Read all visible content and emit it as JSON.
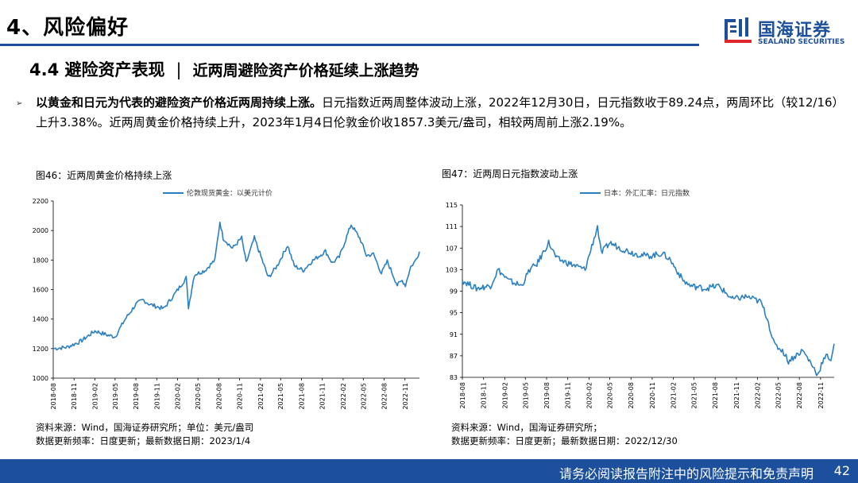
{
  "header": {
    "section_title": "4、风险偏好",
    "sub_title_a": "4.4 避险资产表现",
    "sub_title_sep": "|",
    "sub_title_b": "近两周避险资产价格延续上涨趋势",
    "logo_cn": "国海证券",
    "logo_en": "SEALAND SECURITIES",
    "brand_color": "#1c4f9c"
  },
  "body": {
    "bullet": "➢",
    "para_bold": "以黄金和日元为代表的避险资产价格近两周持续上涨。",
    "para_rest": "日元指数近两周整体波动上涨，2022年12月30日，日元指数收于89.24点，两周环比（较12/16）上升3.38%。近两周黄金价格持续上升，2023年1月4日伦敦金价收1857.3美元/盎司，相较两周前上涨2.19%。"
  },
  "fig46": {
    "title": "图46：近两周黄金价格持续上涨",
    "note1": "资料来源：Wind，国海证券研究所；单位：美元/盎司",
    "note2": "数据更新频率：日度更新；最新数据日期：2023/1/4"
  },
  "fig47": {
    "title": "图47：近两周日元指数波动上涨",
    "note1": "资料来源：Wind，国海证券研究所；",
    "note2": "数据更新频率：日度更新；最新数据日期：2022/12/30"
  },
  "chart_data": [
    {
      "type": "line",
      "legend": "伦敦现货黄金：以美元计价",
      "color": "#2a7fc1",
      "ylim": [
        1000,
        2200
      ],
      "yticks": [
        1000,
        1200,
        1400,
        1600,
        1800,
        2000,
        2200
      ],
      "x_range": [
        "2018-08-01",
        "2023-01-04"
      ],
      "xticks": [
        "2018-08",
        "2018-11",
        "2019-02",
        "2019-05",
        "2019-08",
        "2019-11",
        "2020-02",
        "2020-05",
        "2020-08",
        "2020-11",
        "2021-02",
        "2021-05",
        "2021-08",
        "2021-11",
        "2022-02",
        "2022-05",
        "2022-08",
        "2022-11"
      ],
      "series": [
        {
          "x": [
            "2018-08-01",
            "2018-10-01",
            "2018-12-01",
            "2019-02-01",
            "2019-04-01",
            "2019-05-01",
            "2019-06-15",
            "2019-08-01",
            "2019-09-01",
            "2019-10-01",
            "2019-12-01",
            "2020-01-15",
            "2020-03-10",
            "2020-03-20",
            "2020-04-15",
            "2020-06-01",
            "2020-07-15",
            "2020-08-06",
            "2020-08-20",
            "2020-09-30",
            "2020-11-10",
            "2020-11-30",
            "2021-01-05",
            "2021-03-08",
            "2021-04-15",
            "2021-06-01",
            "2021-06-30",
            "2021-08-09",
            "2021-09-15",
            "2021-11-15",
            "2021-12-15",
            "2022-01-15",
            "2022-03-08",
            "2022-04-15",
            "2022-05-15",
            "2022-06-15",
            "2022-07-20",
            "2022-08-15",
            "2022-09-28",
            "2022-10-20",
            "2022-11-03",
            "2022-11-25",
            "2022-12-15",
            "2023-01-04"
          ],
          "y": [
            1200,
            1210,
            1250,
            1320,
            1290,
            1280,
            1400,
            1500,
            1530,
            1500,
            1470,
            1560,
            1680,
            1480,
            1700,
            1730,
            1800,
            2060,
            1950,
            1880,
            1950,
            1780,
            1950,
            1680,
            1760,
            1900,
            1760,
            1730,
            1790,
            1860,
            1780,
            1820,
            2040,
            1950,
            1830,
            1840,
            1710,
            1790,
            1630,
            1660,
            1630,
            1750,
            1790,
            1857.3
          ]
        }
      ]
    },
    {
      "type": "line",
      "legend": "日本：外汇汇率：日元指数",
      "color": "#2a7fc1",
      "ylim": [
        83,
        115
      ],
      "yticks": [
        83,
        87,
        91,
        95,
        99,
        103,
        107,
        111,
        115
      ],
      "x_range": [
        "2018-08-01",
        "2022-12-30"
      ],
      "xticks": [
        "2018-08",
        "2018-11",
        "2019-02",
        "2019-05",
        "2019-08",
        "2019-11",
        "2020-02",
        "2020-05",
        "2020-08",
        "2020-11",
        "2021-02",
        "2021-05",
        "2021-08",
        "2021-11",
        "2022-02",
        "2022-05",
        "2022-08",
        "2022-11"
      ],
      "series": [
        {
          "x": [
            "2018-08-01",
            "2018-10-01",
            "2018-12-01",
            "2019-01-03",
            "2019-02-15",
            "2019-04-15",
            "2019-05-20",
            "2019-06-20",
            "2019-08-10",
            "2019-09-15",
            "2019-11-15",
            "2020-01-15",
            "2020-03-09",
            "2020-03-25",
            "2020-05-01",
            "2020-06-15",
            "2020-08-15",
            "2020-10-15",
            "2020-12-15",
            "2021-01-15",
            "2021-03-15",
            "2021-04-15",
            "2021-06-15",
            "2021-08-15",
            "2021-10-15",
            "2021-12-15",
            "2022-01-15",
            "2022-02-15",
            "2022-03-15",
            "2022-04-15",
            "2022-05-20",
            "2022-06-15",
            "2022-07-15",
            "2022-08-15",
            "2022-09-15",
            "2022-10-20",
            "2022-11-10",
            "2022-11-30",
            "2022-12-16",
            "2022-12-30"
          ],
          "y": [
            101,
            99.5,
            100,
            103,
            101,
            100,
            103,
            104,
            108,
            105,
            104,
            103,
            111,
            106,
            108,
            107,
            106,
            105.5,
            106,
            105,
            101,
            100,
            99.5,
            100,
            97.5,
            98,
            97.5,
            97,
            94,
            89,
            88,
            86,
            87,
            88,
            86,
            83.5,
            86,
            87,
            86.3,
            89.24
          ]
        }
      ]
    }
  ]
}
